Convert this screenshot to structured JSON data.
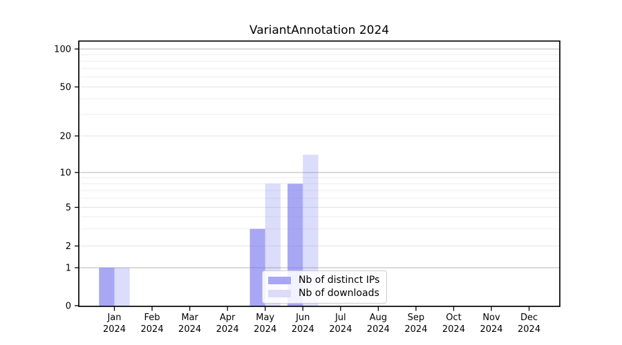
{
  "chart_data": {
    "type": "bar",
    "title": "VariantAnnotation 2024",
    "x": {
      "months": [
        "Jan",
        "Feb",
        "Mar",
        "Apr",
        "May",
        "Jun",
        "Jul",
        "Aug",
        "Sep",
        "Oct",
        "Nov",
        "Dec"
      ],
      "year": "2024"
    },
    "categories": [
      "Jan 2024",
      "Feb 2024",
      "Mar 2024",
      "Apr 2024",
      "May 2024",
      "Jun 2024",
      "Jul 2024",
      "Aug 2024",
      "Sep 2024",
      "Oct 2024",
      "Nov 2024",
      "Dec 2024"
    ],
    "series": [
      {
        "name": "Nb of distinct IPs",
        "color": "#7878ee",
        "opacity": 0.65,
        "rendered_color": "#a7a7f3",
        "values": [
          1,
          0,
          0,
          0,
          3,
          8,
          0,
          0,
          0,
          0,
          0,
          0
        ]
      },
      {
        "name": "Nb of downloads",
        "color": "#7878ee",
        "opacity": 0.26,
        "rendered_color": "#dcdcf8",
        "values": [
          1,
          0,
          0,
          0,
          8,
          14,
          0,
          0,
          0,
          0,
          0,
          0
        ]
      }
    ],
    "y_axis": {
      "scale": "log-above-1-linear-below-1",
      "tick_values": [
        0,
        1,
        2,
        5,
        10,
        20,
        50,
        100
      ],
      "minor_gridline_values": [
        3,
        4,
        6,
        7,
        8,
        9,
        30,
        40,
        60,
        70,
        80,
        90
      ],
      "ylim": [
        0,
        116
      ]
    },
    "legend": {
      "position": "lower center",
      "entries": [
        "Nb of distinct IPs",
        "Nb of downloads"
      ]
    },
    "grid": true,
    "style": {
      "grid_power10_color": "#c4c4c4",
      "grid_major_color": "#e3e3e3",
      "grid_minor_color": "#ededed",
      "axis_color": "#000000",
      "text_color": "#000000",
      "background": "#ffffff"
    }
  }
}
